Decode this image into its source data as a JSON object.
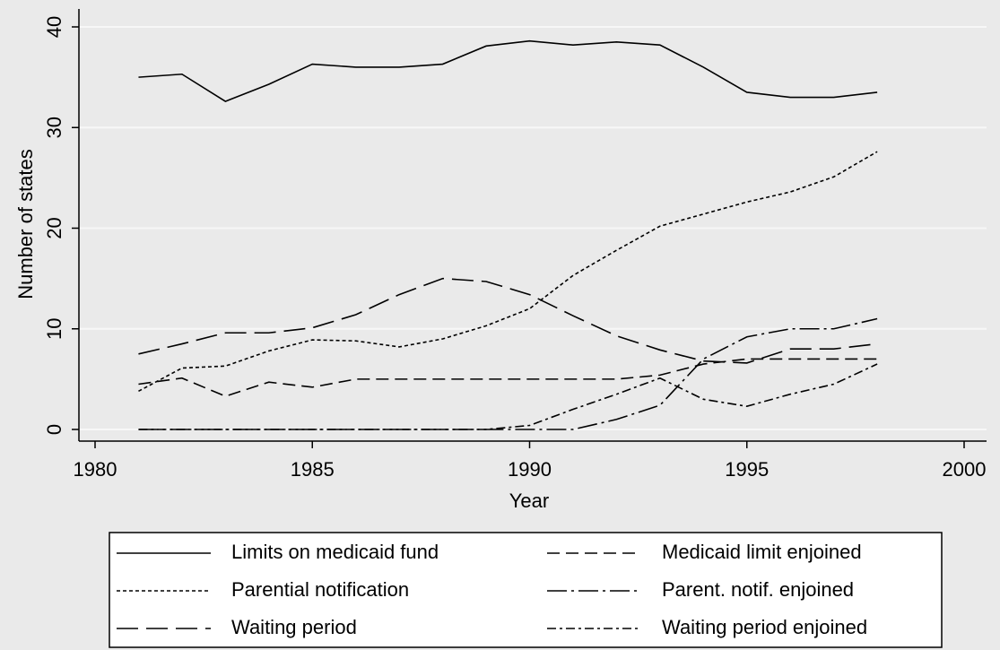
{
  "chart_data": {
    "type": "line",
    "x_label": "Year",
    "y_label": "Number of states",
    "x": [
      1981,
      1982,
      1983,
      1984,
      1985,
      1986,
      1987,
      1988,
      1989,
      1990,
      1991,
      1992,
      1993,
      1994,
      1995,
      1996,
      1997,
      1998
    ],
    "xlim": [
      1980,
      2000
    ],
    "xticks": [
      1980,
      1985,
      1990,
      1995,
      2000
    ],
    "ylim": [
      0,
      40
    ],
    "yticks": [
      0,
      10,
      20,
      30,
      40
    ],
    "grid": true,
    "series": [
      {
        "name": "Limits on medicaid fund",
        "color": "#000000",
        "dash": "solid",
        "values": [
          35,
          35.3,
          32.6,
          34.3,
          36.3,
          36,
          36,
          36.3,
          38.1,
          38.6,
          38.2,
          38.5,
          38.2,
          36,
          33.5,
          33,
          33,
          33.5
        ]
      },
      {
        "name": "Medicaid limit enjoined",
        "color": "#000000",
        "dash": "dash",
        "values": [
          4.5,
          5.1,
          3.3,
          4.7,
          4.2,
          5,
          5,
          5,
          5,
          5,
          5,
          5,
          5.4,
          6.5,
          7,
          7,
          7,
          7
        ]
      },
      {
        "name": "Parential notification",
        "color": "#000000",
        "dash": "shortdash",
        "values": [
          3.8,
          6.1,
          6.3,
          7.8,
          8.9,
          8.8,
          8.2,
          9,
          10.3,
          12,
          15.3,
          17.8,
          20.2,
          21.4,
          22.6,
          23.6,
          25.1,
          27.6
        ]
      },
      {
        "name": "Parent. notif. enjoined",
        "color": "#000000",
        "dash": "longdashdot",
        "values": [
          0,
          0,
          0,
          0,
          0,
          0,
          0,
          0,
          0,
          0,
          0,
          1,
          2.4,
          7,
          9.2,
          10,
          10,
          11
        ]
      },
      {
        "name": "Waiting period",
        "color": "#000000",
        "dash": "longdash",
        "values": [
          7.5,
          8.5,
          9.6,
          9.6,
          10.1,
          11.4,
          13.4,
          15,
          14.7,
          13.4,
          11.3,
          9.3,
          7.9,
          6.8,
          6.6,
          8,
          8,
          8.5
        ]
      },
      {
        "name": "Waiting period enjoined",
        "color": "#000000",
        "dash": "dashdot",
        "values": [
          0,
          0,
          0,
          0,
          0,
          0,
          0,
          0,
          0,
          0.4,
          2,
          3.5,
          5.1,
          3,
          2.3,
          3.5,
          4.5,
          6.5
        ]
      }
    ]
  }
}
